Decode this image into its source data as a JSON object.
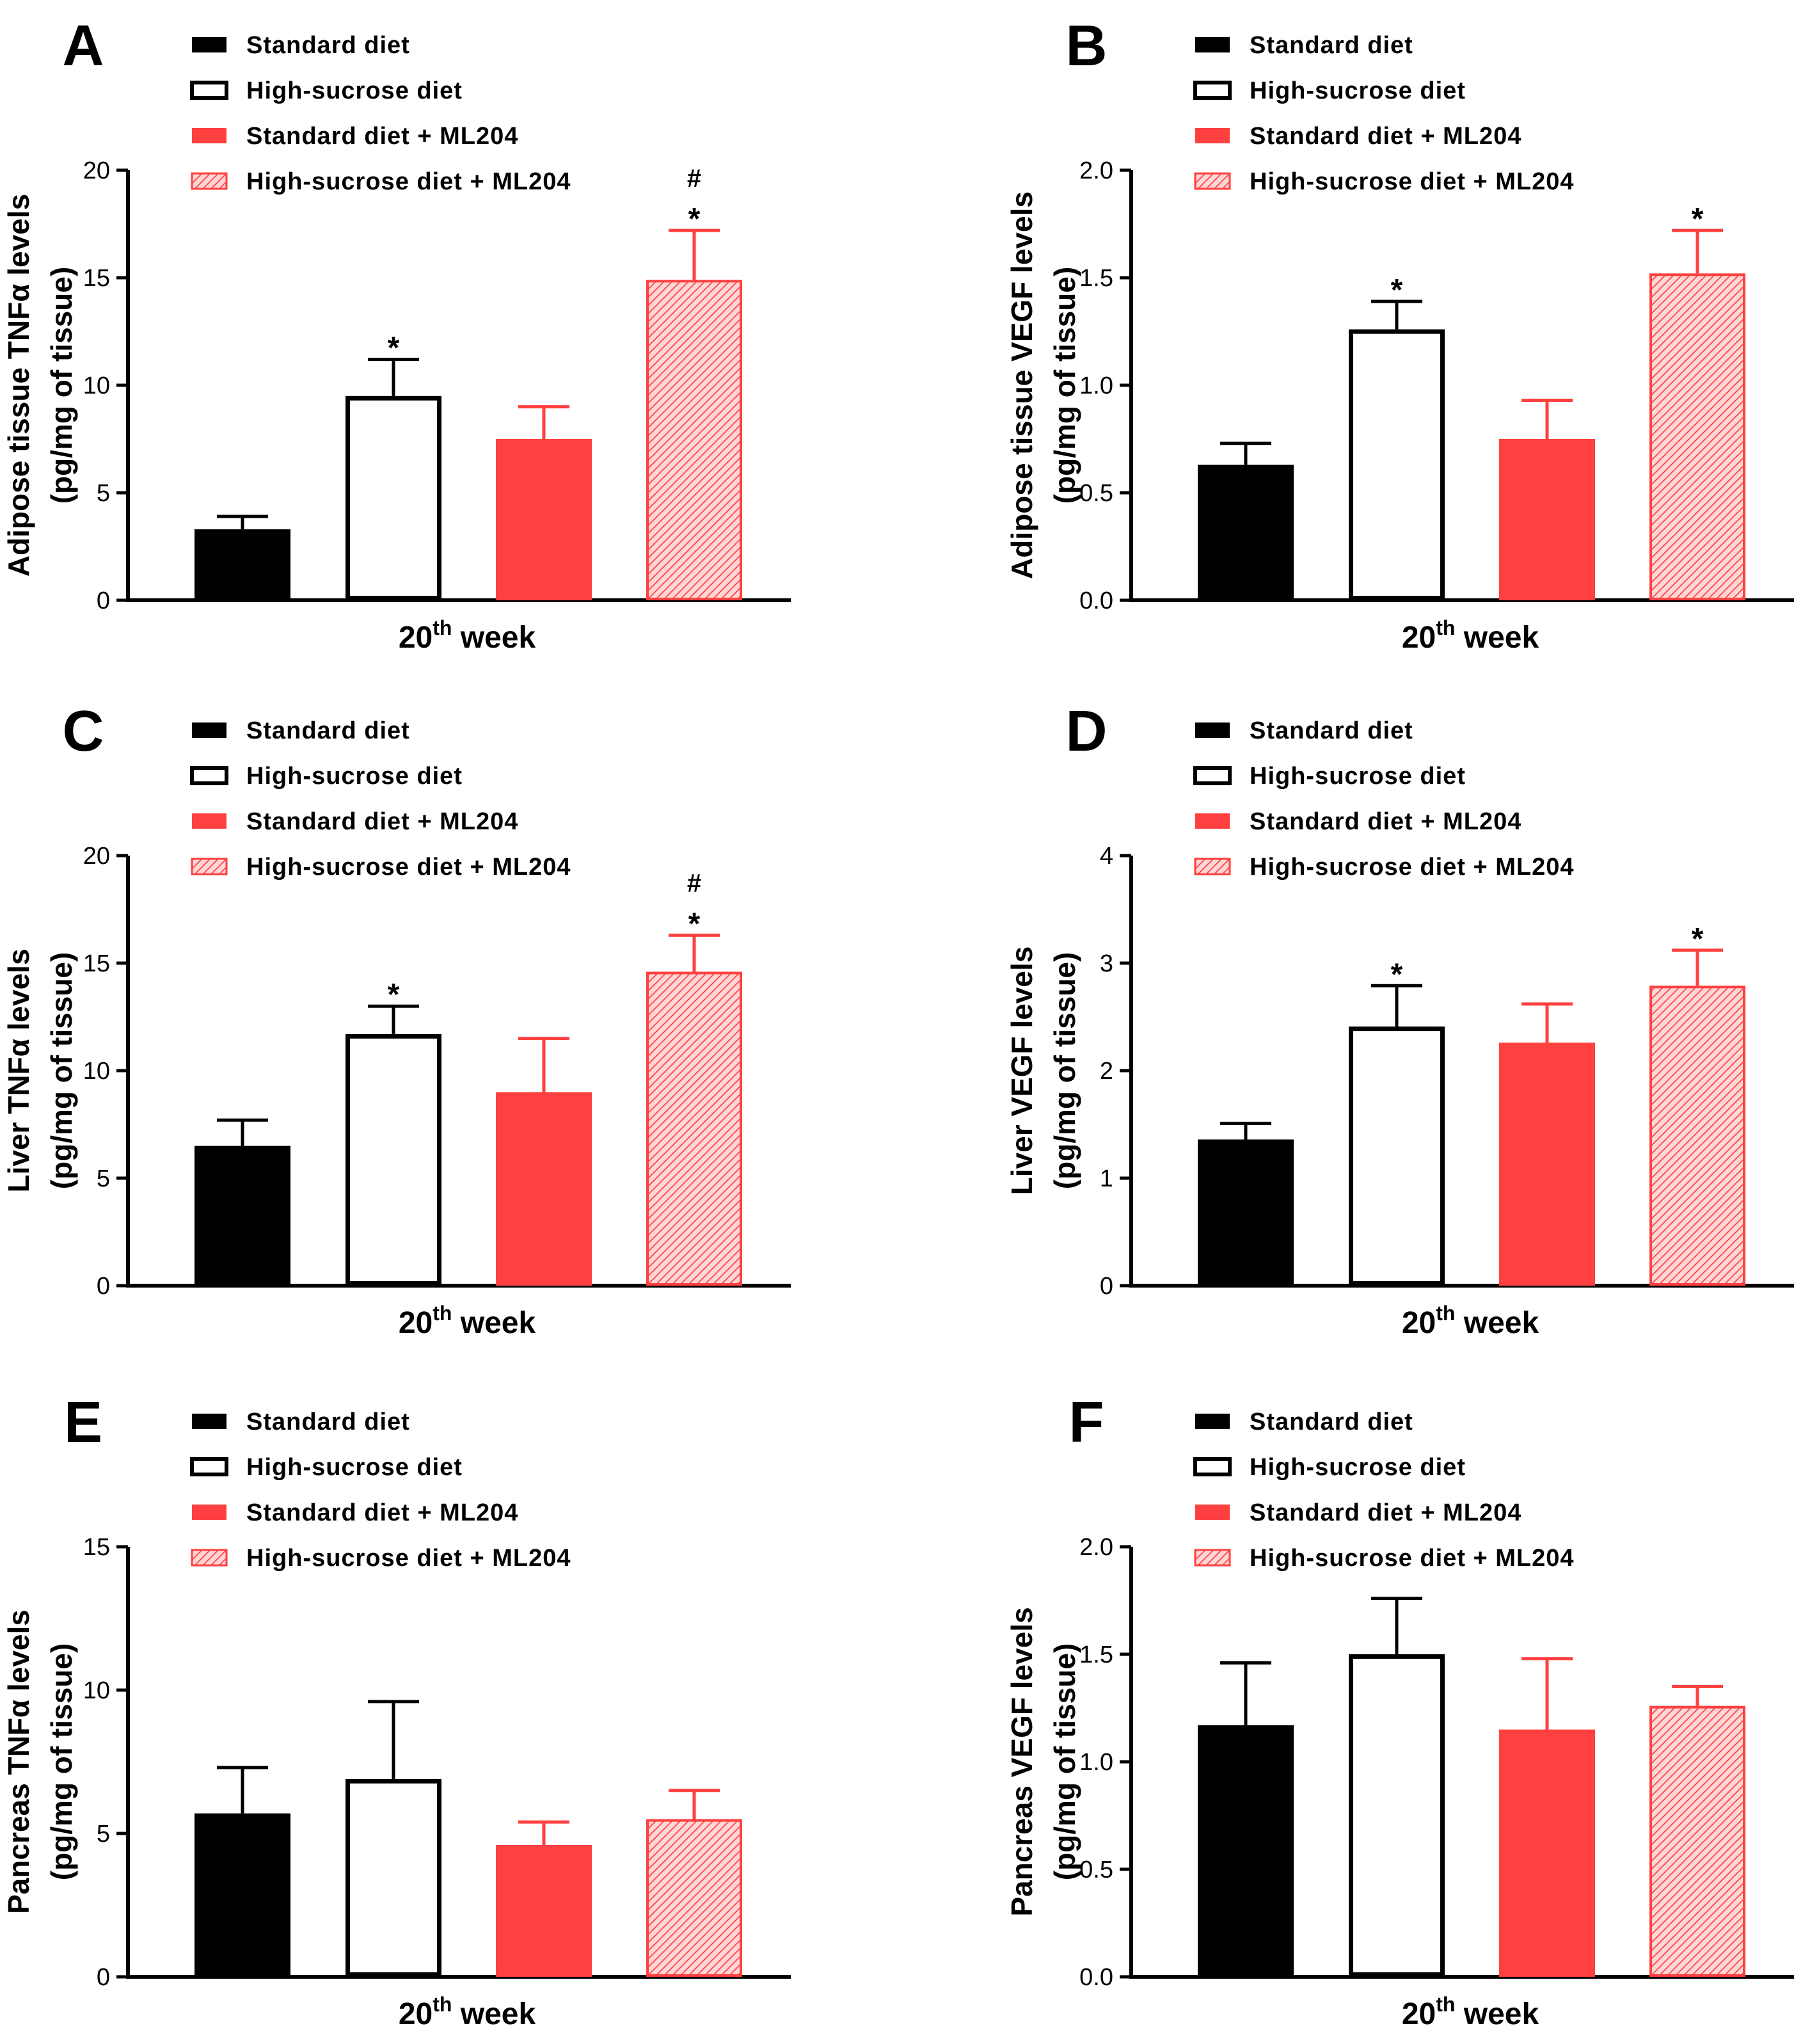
{
  "figure": {
    "colors": {
      "standard": "#000000",
      "high_sucrose": "#ffffff",
      "ml204": "#ff4040",
      "axis": "#000000"
    },
    "legend_labels": [
      "Standard diet",
      "High-sucrose diet",
      "Standard diet + ML204",
      "High-sucrose diet + ML204"
    ],
    "x_group_label": "20",
    "x_group_sup": "th",
    "x_group_suffix": " week"
  },
  "chart_data": [
    {
      "panel": "A",
      "type": "bar",
      "categories": [
        "Standard diet",
        "High-sucrose diet",
        "Standard diet + ML204",
        "High-sucrose diet + ML204"
      ],
      "values": [
        3.3,
        9.5,
        7.5,
        14.9
      ],
      "errors": [
        0.6,
        1.7,
        1.5,
        2.3
      ],
      "annotations": [
        "",
        "*",
        "",
        "#*"
      ],
      "ylabel": "Adipose tissue TNFα levels",
      "ylabel2": "(pg/mg of tissue)",
      "ylim": [
        0,
        20
      ],
      "yticks": [
        0,
        5,
        10,
        15,
        20
      ],
      "ytick_labels": [
        "0",
        "5",
        "10",
        "15",
        "20"
      ]
    },
    {
      "panel": "B",
      "type": "bar",
      "categories": [
        "Standard diet",
        "High-sucrose diet",
        "Standard diet + ML204",
        "High-sucrose diet + ML204"
      ],
      "values": [
        0.63,
        1.26,
        0.75,
        1.52
      ],
      "errors": [
        0.1,
        0.13,
        0.18,
        0.2
      ],
      "annotations": [
        "",
        "*",
        "",
        "*"
      ],
      "ylabel": "Adipose tissue VEGF levels",
      "ylabel2": "(pg/mg of tissue)",
      "ylim": [
        0,
        2
      ],
      "yticks": [
        0,
        0.5,
        1,
        1.5,
        2
      ],
      "ytick_labels": [
        "0.0",
        "0.5",
        "1.0",
        "1.5",
        "2.0"
      ]
    },
    {
      "panel": "C",
      "type": "bar",
      "categories": [
        "Standard diet",
        "High-sucrose diet",
        "Standard diet + ML204",
        "High-sucrose diet + ML204"
      ],
      "values": [
        6.5,
        11.7,
        9.0,
        14.6
      ],
      "errors": [
        1.2,
        1.3,
        2.5,
        1.7
      ],
      "annotations": [
        "",
        "*",
        "",
        "#*"
      ],
      "ylabel": "Liver TNFα levels",
      "ylabel2": "(pg/mg of tissue)",
      "ylim": [
        0,
        20
      ],
      "yticks": [
        0,
        5,
        10,
        15,
        20
      ],
      "ytick_labels": [
        "0",
        "5",
        "10",
        "15",
        "20"
      ]
    },
    {
      "panel": "D",
      "type": "bar",
      "categories": [
        "Standard diet",
        "High-sucrose diet",
        "Standard diet + ML204",
        "High-sucrose diet + ML204"
      ],
      "values": [
        1.36,
        2.41,
        2.26,
        2.79
      ],
      "errors": [
        0.15,
        0.38,
        0.36,
        0.33
      ],
      "annotations": [
        "",
        "*",
        "",
        "*"
      ],
      "ylabel": "Liver VEGF levels",
      "ylabel2": "(pg/mg of tissue)",
      "ylim": [
        0,
        4
      ],
      "yticks": [
        0,
        1,
        2,
        3,
        4
      ],
      "ytick_labels": [
        "0",
        "1",
        "2",
        "3",
        "4"
      ]
    },
    {
      "panel": "E",
      "type": "bar",
      "categories": [
        "Standard diet",
        "High-sucrose diet",
        "Standard diet + ML204",
        "High-sucrose diet + ML204"
      ],
      "values": [
        5.7,
        6.9,
        4.6,
        5.5
      ],
      "errors": [
        1.6,
        2.7,
        0.8,
        1.0
      ],
      "annotations": [
        "",
        "",
        "",
        ""
      ],
      "ylabel": "Pancreas TNFα levels",
      "ylabel2": "(pg/mg of tissue)",
      "ylim": [
        0,
        15
      ],
      "yticks": [
        0,
        5,
        10,
        15
      ],
      "ytick_labels": [
        "0",
        "5",
        "10",
        "15"
      ]
    },
    {
      "panel": "F",
      "type": "bar",
      "categories": [
        "Standard diet",
        "High-sucrose diet",
        "Standard diet + ML204",
        "High-sucrose diet + ML204"
      ],
      "values": [
        1.17,
        1.5,
        1.15,
        1.26
      ],
      "errors": [
        0.29,
        0.26,
        0.33,
        0.09
      ],
      "annotations": [
        "",
        "",
        "",
        ""
      ],
      "ylabel": "Pancreas VEGF levels",
      "ylabel2": "(pg/mg of tissue)",
      "ylim": [
        0,
        2
      ],
      "yticks": [
        0,
        0.5,
        1,
        1.5,
        2
      ],
      "ytick_labels": [
        "0.0",
        "0.5",
        "1.0",
        "1.5",
        "2.0"
      ]
    }
  ]
}
